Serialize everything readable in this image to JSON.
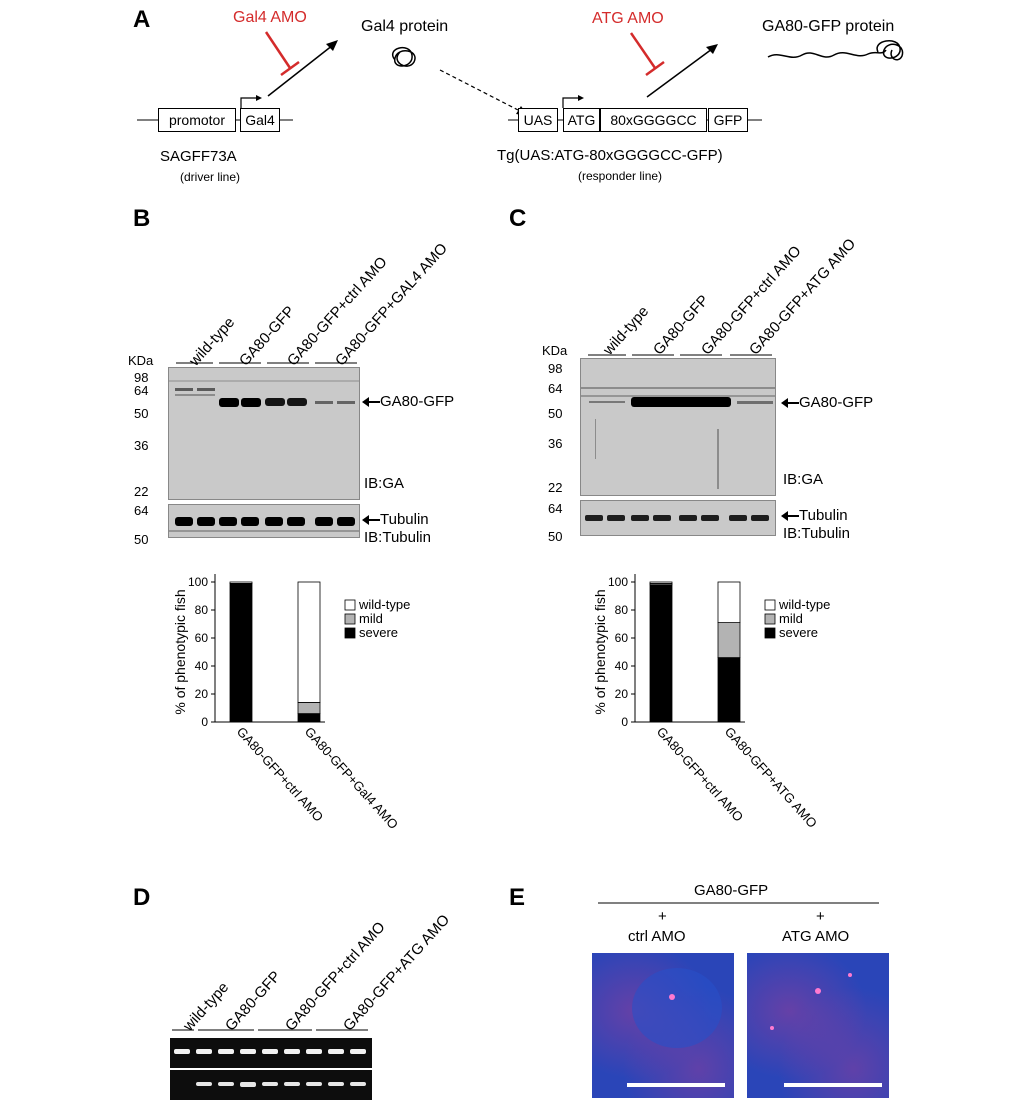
{
  "panelA": {
    "label": "A",
    "gal4_amo": "Gal4 AMO",
    "gal4_protein": "Gal4 protein",
    "atg_amo": "ATG AMO",
    "ga80_protein": "GA80-GFP protein",
    "promotor": "promotor",
    "gal4": "Gal4",
    "uas": "UAS",
    "atg": "ATG",
    "repeat": "80xGGGGCC",
    "gfp": "GFP",
    "driver_name": "SAGFF73A",
    "driver_type": "(driver line)",
    "responder_name": "Tg(UAS:ATG-80xGGGGCC-GFP)",
    "responder_type": "(responder line)",
    "accent_color": "#d42b2b"
  },
  "panelB": {
    "label": "B",
    "lanes": [
      "wild-type",
      "GA80-GFP",
      "GA80-GFP+ctrl AMO",
      "GA80-GFP+GAL4 AMO"
    ],
    "kda": "KDa",
    "markers_top": [
      "98",
      "64",
      "50",
      "36",
      "22"
    ],
    "markers_bottom": [
      "64",
      "50"
    ],
    "band_label": "GA80-GFP",
    "ib_top": "IB:GA",
    "tubulin": "Tubulin",
    "ib_bottom": "IB:Tubulin"
  },
  "panelC": {
    "label": "C",
    "lanes": [
      "wild-type",
      "GA80-GFP",
      "GA80-GFP+ctrl AMO",
      "GA80-GFP+ATG AMO"
    ],
    "kda": "KDa",
    "markers_top": [
      "98",
      "64",
      "50",
      "36",
      "22"
    ],
    "markers_bottom": [
      "64",
      "50"
    ],
    "band_label": "GA80-GFP",
    "ib_top": "IB:GA",
    "tubulin": "Tubulin",
    "ib_bottom": "IB:Tubulin"
  },
  "chart_data": [
    {
      "type": "bar",
      "stacked": true,
      "ylabel": "% of phenotypic fish",
      "ylim": [
        0,
        100
      ],
      "yticks": [
        "0",
        "20",
        "40",
        "60",
        "80",
        "100"
      ],
      "categories": [
        "GA80-GFP+ctrl AMO",
        "GA80-GFP+Gal4 AMO"
      ],
      "series": [
        {
          "name": "severe",
          "color": "#000000",
          "values": [
            99,
            6
          ]
        },
        {
          "name": "mild",
          "color": "#b3b3b3",
          "values": [
            0,
            8
          ]
        },
        {
          "name": "wild-type",
          "color": "#ffffff",
          "values": [
            1,
            86
          ]
        }
      ],
      "legend": "right"
    },
    {
      "type": "bar",
      "stacked": true,
      "ylabel": "% of phenotypic fish",
      "ylim": [
        0,
        100
      ],
      "yticks": [
        "0",
        "20",
        "40",
        "60",
        "80",
        "100"
      ],
      "categories": [
        "GA80-GFP+ctrl AMO",
        "GA80-GFP+ATG AMO"
      ],
      "series": [
        {
          "name": "severe",
          "color": "#000000",
          "values": [
            98,
            46
          ]
        },
        {
          "name": "mild",
          "color": "#b3b3b3",
          "values": [
            1,
            25
          ]
        },
        {
          "name": "wild-type",
          "color": "#ffffff",
          "values": [
            1,
            29
          ]
        }
      ],
      "legend": "right"
    }
  ],
  "panelD": {
    "label": "D",
    "lanes": [
      "wild-type",
      "GA80-GFP",
      "GA80-GFP+ctrl AMO",
      "GA80-GFP+ATG AMO"
    ]
  },
  "panelE": {
    "label": "E",
    "header": "GA80-GFP",
    "plus": "+",
    "left_label": "ctrl AMO",
    "right_label": "ATG AMO"
  }
}
